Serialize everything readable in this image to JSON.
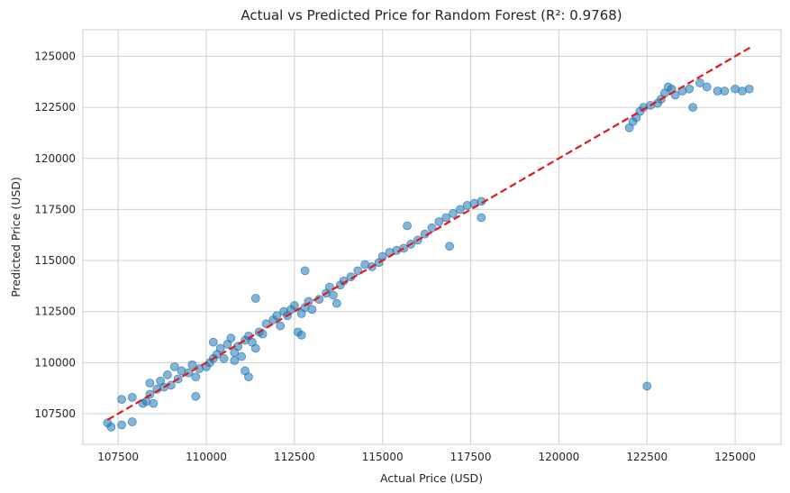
{
  "chart_data": {
    "type": "scatter",
    "title": "Actual vs Predicted Price for Random Forest (R²: 0.9768)",
    "xlabel": "Actual Price (USD)",
    "ylabel": "Predicted Price (USD)",
    "xlim": [
      106500,
      126300
    ],
    "ylim": [
      106000,
      126300
    ],
    "xticks": [
      107500,
      110000,
      112500,
      115000,
      117500,
      120000,
      122500,
      125000
    ],
    "yticks": [
      107500,
      110000,
      112500,
      115000,
      117500,
      120000,
      122500,
      125000
    ],
    "grid": true,
    "point_color": "#1f77b4",
    "reference_line": {
      "color": "#e31a1c",
      "style": "dashed",
      "from": [
        107200,
        107200
      ],
      "to": [
        125500,
        125500
      ]
    },
    "points": [
      [
        107200,
        107050
      ],
      [
        107300,
        106850
      ],
      [
        107600,
        106950
      ],
      [
        107900,
        107100
      ],
      [
        107600,
        108200
      ],
      [
        107900,
        108300
      ],
      [
        108200,
        108000
      ],
      [
        108300,
        108100
      ],
      [
        108500,
        108000
      ],
      [
        108400,
        108450
      ],
      [
        108600,
        108700
      ],
      [
        108800,
        108800
      ],
      [
        108400,
        109000
      ],
      [
        108700,
        109100
      ],
      [
        109000,
        108900
      ],
      [
        108900,
        109400
      ],
      [
        109200,
        109200
      ],
      [
        109300,
        109600
      ],
      [
        109100,
        109800
      ],
      [
        109500,
        109500
      ],
      [
        109600,
        109900
      ],
      [
        109800,
        109700
      ],
      [
        109700,
        109300
      ],
      [
        109700,
        108350
      ],
      [
        110000,
        109800
      ],
      [
        110100,
        110000
      ],
      [
        110200,
        110200
      ],
      [
        110300,
        110400
      ],
      [
        110500,
        110200
      ],
      [
        110400,
        110700
      ],
      [
        110200,
        111000
      ],
      [
        110600,
        110900
      ],
      [
        110700,
        111200
      ],
      [
        110800,
        110500
      ],
      [
        110900,
        110800
      ],
      [
        111000,
        110300
      ],
      [
        110800,
        110100
      ],
      [
        111100,
        111100
      ],
      [
        111200,
        111300
      ],
      [
        111300,
        111000
      ],
      [
        111500,
        111500
      ],
      [
        111400,
        110700
      ],
      [
        111100,
        109600
      ],
      [
        111200,
        109300
      ],
      [
        111400,
        113150
      ],
      [
        111600,
        111400
      ],
      [
        111700,
        111900
      ],
      [
        111900,
        112100
      ],
      [
        112000,
        112300
      ],
      [
        112100,
        111800
      ],
      [
        112200,
        112500
      ],
      [
        112300,
        112300
      ],
      [
        112400,
        112600
      ],
      [
        112500,
        112800
      ],
      [
        112600,
        111500
      ],
      [
        112700,
        112400
      ],
      [
        112800,
        112700
      ],
      [
        112900,
        113000
      ],
      [
        113000,
        112600
      ],
      [
        112700,
        111350
      ],
      [
        112800,
        114500
      ],
      [
        113200,
        113100
      ],
      [
        113400,
        113400
      ],
      [
        113500,
        113700
      ],
      [
        113600,
        113300
      ],
      [
        113700,
        112900
      ],
      [
        113800,
        113800
      ],
      [
        113900,
        114000
      ],
      [
        114100,
        114200
      ],
      [
        114300,
        114500
      ],
      [
        114500,
        114800
      ],
      [
        114700,
        114700
      ],
      [
        114900,
        114900
      ],
      [
        115000,
        115200
      ],
      [
        115200,
        115400
      ],
      [
        115400,
        115500
      ],
      [
        115600,
        115600
      ],
      [
        115800,
        115800
      ],
      [
        116000,
        116000
      ],
      [
        115700,
        116700
      ],
      [
        116200,
        116300
      ],
      [
        116400,
        116600
      ],
      [
        116600,
        116900
      ],
      [
        116800,
        117100
      ],
      [
        117000,
        117300
      ],
      [
        117200,
        117500
      ],
      [
        117400,
        117700
      ],
      [
        117600,
        117800
      ],
      [
        117800,
        117900
      ],
      [
        117800,
        117100
      ],
      [
        116900,
        115700
      ],
      [
        122000,
        121500
      ],
      [
        122100,
        121800
      ],
      [
        122200,
        122000
      ],
      [
        122300,
        122300
      ],
      [
        122400,
        122500
      ],
      [
        122500,
        108850
      ],
      [
        122600,
        122600
      ],
      [
        122800,
        122700
      ],
      [
        122900,
        122900
      ],
      [
        123000,
        123200
      ],
      [
        123100,
        123500
      ],
      [
        123200,
        123400
      ],
      [
        123300,
        123100
      ],
      [
        123500,
        123300
      ],
      [
        123700,
        123400
      ],
      [
        123800,
        122500
      ],
      [
        124000,
        123700
      ],
      [
        124200,
        123500
      ],
      [
        124500,
        123300
      ],
      [
        124700,
        123300
      ],
      [
        125000,
        123400
      ],
      [
        125200,
        123300
      ],
      [
        125400,
        123400
      ]
    ]
  }
}
